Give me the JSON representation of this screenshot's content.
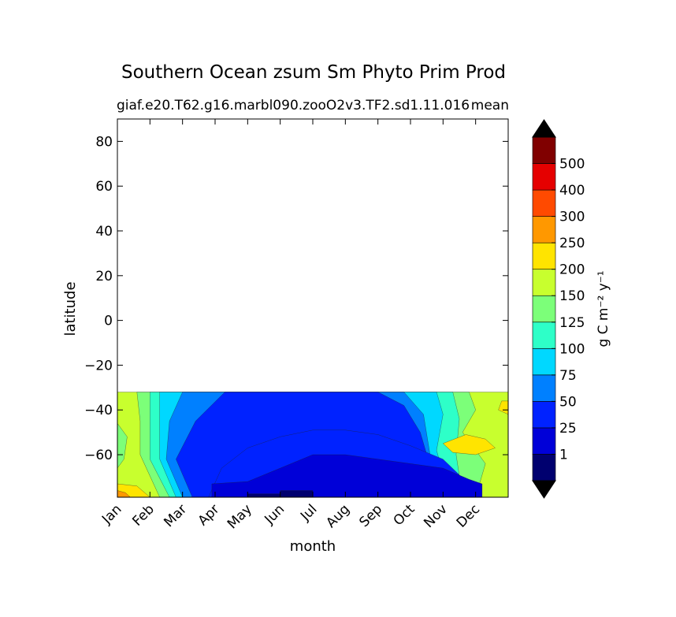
{
  "chart_data": {
    "type": "heatmap",
    "title": "Southern Ocean zsum Sm Phyto Prim Prod",
    "subtitle_left": "giaf.e20.T62.g16.marbl090.zooO2v3.TF2.sd1.11.016",
    "subtitle_right": "mean",
    "xlabel": "month",
    "ylabel": "latitude",
    "x_ticks": [
      "Jan",
      "Feb",
      "Mar",
      "Apr",
      "May",
      "Jun",
      "Jul",
      "Aug",
      "Sep",
      "Oct",
      "Nov",
      "Dec"
    ],
    "y_ticks": [
      80,
      60,
      40,
      20,
      0,
      -20,
      -40,
      -60
    ],
    "y_tick_labels": [
      "80",
      "60",
      "40",
      "20",
      "0",
      "−20",
      "−40",
      "−60"
    ],
    "ylim": [
      -79,
      90
    ],
    "data_lat_max": -32,
    "colorbar": {
      "label": "g C m⁻² y⁻¹",
      "levels": [
        0,
        1,
        25,
        50,
        75,
        100,
        125,
        150,
        200,
        250,
        300,
        400,
        500,
        600
      ],
      "tick_labels": [
        "1",
        "25",
        "50",
        "75",
        "100",
        "125",
        "150",
        "200",
        "250",
        "300",
        "400",
        "500"
      ],
      "colors": [
        "#00006f",
        "#0000d8",
        "#0022ff",
        "#0080ff",
        "#00d8ff",
        "#2effc8",
        "#7cff79",
        "#c8ff2e",
        "#ffe400",
        "#ff9800",
        "#ff4a00",
        "#e50000",
        "#800000"
      ],
      "extend": "both",
      "extend_low_color": "#000000",
      "extend_high_color": "#000000"
    },
    "contour_regions": [
      {
        "level": 1,
        "points": [
          [
            2.9,
            -79
          ],
          [
            2.9,
            -73
          ],
          [
            4.0,
            -72
          ],
          [
            5.0,
            -66
          ],
          [
            6.0,
            -60
          ],
          [
            7.0,
            -60
          ],
          [
            8.0,
            -62
          ],
          [
            9.0,
            -64
          ],
          [
            10.0,
            -66
          ],
          [
            10.8,
            -71
          ],
          [
            11.2,
            -73
          ],
          [
            11.2,
            -79
          ]
        ]
      },
      {
        "level": 0,
        "points": [
          [
            4.0,
            -79
          ],
          [
            4.0,
            -77.5
          ],
          [
            5.0,
            -77.5
          ],
          [
            5.0,
            -76
          ],
          [
            6.0,
            -76
          ],
          [
            6.0,
            -79
          ]
        ]
      },
      {
        "level": 2,
        "points": [
          [
            2.8,
            -79
          ],
          [
            3.2,
            -66
          ],
          [
            4.0,
            -57
          ],
          [
            5.0,
            -52
          ],
          [
            6.0,
            -49
          ],
          [
            7.0,
            -49
          ],
          [
            8.0,
            -51
          ],
          [
            9.0,
            -56
          ],
          [
            10.0,
            -62
          ],
          [
            10.5,
            -69
          ],
          [
            10.8,
            -79
          ]
        ]
      },
      {
        "level": 8,
        "points": [
          [
            10.0,
            -55
          ],
          [
            10.7,
            -51
          ],
          [
            11.3,
            -53
          ],
          [
            11.6,
            -57
          ],
          [
            11.0,
            -60
          ],
          [
            10.3,
            -59
          ]
        ]
      },
      {
        "level": 6,
        "points": [
          [
            0,
            -46
          ],
          [
            0.3,
            -52
          ],
          [
            0.2,
            -62
          ],
          [
            0,
            -66
          ]
        ]
      },
      {
        "level": 8,
        "points": [
          [
            0,
            -73
          ],
          [
            0.6,
            -74
          ],
          [
            1.0,
            -79
          ],
          [
            0,
            -79
          ]
        ]
      }
    ],
    "bands": [
      {
        "level": 7,
        "points": [
          [
            0,
            -32
          ],
          [
            12,
            -32
          ],
          [
            12,
            -79
          ],
          [
            0,
            -79
          ]
        ]
      },
      {
        "level": 6,
        "points": [
          [
            0.6,
            -32
          ],
          [
            10.8,
            -32
          ],
          [
            11.0,
            -40
          ],
          [
            10.6,
            -50
          ],
          [
            11.3,
            -64
          ],
          [
            11.0,
            -79
          ],
          [
            1.3,
            -79
          ],
          [
            0.7,
            -60
          ],
          [
            0.7,
            -45
          ]
        ]
      },
      {
        "level": 5,
        "points": [
          [
            1.0,
            -32
          ],
          [
            10.3,
            -32
          ],
          [
            10.5,
            -44
          ],
          [
            10.4,
            -60
          ],
          [
            10.6,
            -79
          ],
          [
            1.6,
            -79
          ],
          [
            1.0,
            -62
          ],
          [
            1.0,
            -45
          ]
        ]
      },
      {
        "level": 4,
        "points": [
          [
            1.3,
            -32
          ],
          [
            9.8,
            -32
          ],
          [
            10.0,
            -42
          ],
          [
            9.8,
            -58
          ],
          [
            10.2,
            -79
          ],
          [
            1.8,
            -79
          ],
          [
            1.3,
            -62
          ],
          [
            1.3,
            -45
          ]
        ]
      },
      {
        "level": 3,
        "points": [
          [
            2.0,
            -32
          ],
          [
            8.8,
            -32
          ],
          [
            9.4,
            -42
          ],
          [
            9.6,
            -60
          ],
          [
            9.9,
            -79
          ],
          [
            2.0,
            -79
          ],
          [
            1.5,
            -62
          ],
          [
            1.6,
            -45
          ]
        ]
      },
      {
        "level": 2,
        "points": [
          [
            3.3,
            -32
          ],
          [
            8.0,
            -32
          ],
          [
            8.8,
            -38
          ],
          [
            9.3,
            -50
          ],
          [
            9.6,
            -65
          ],
          [
            9.6,
            -79
          ],
          [
            2.3,
            -79
          ],
          [
            1.8,
            -62
          ],
          [
            2.4,
            -45
          ]
        ]
      },
      {
        "level": 8,
        "points": [
          [
            11.8,
            -36
          ],
          [
            12,
            -36
          ],
          [
            12,
            -42
          ],
          [
            11.7,
            -40
          ]
        ]
      },
      {
        "level": 9,
        "points": [
          [
            0,
            -76
          ],
          [
            0.25,
            -77
          ],
          [
            0.4,
            -79
          ],
          [
            0,
            -79
          ]
        ]
      }
    ]
  }
}
